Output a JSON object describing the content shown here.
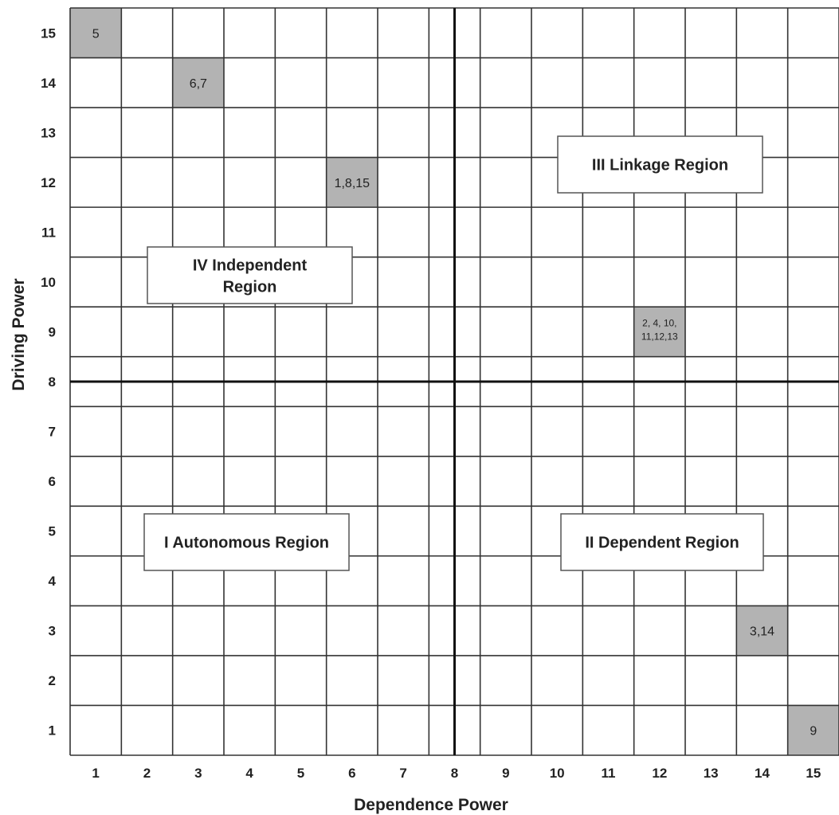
{
  "chart_data": {
    "type": "scatter",
    "xlabel": "Dependence Power",
    "ylabel": "Driving Power",
    "xlim": [
      1,
      15
    ],
    "ylim": [
      1,
      15
    ],
    "x_ticks": [
      "1",
      "2",
      "3",
      "4",
      "5",
      "6",
      "7",
      "8",
      "9",
      "10",
      "11",
      "12",
      "13",
      "14",
      "15"
    ],
    "y_ticks": [
      "1",
      "2",
      "3",
      "4",
      "5",
      "6",
      "7",
      "8",
      "9",
      "10",
      "11",
      "12",
      "13",
      "14",
      "15"
    ],
    "grid": true,
    "divider": {
      "x": 8,
      "y": 8
    },
    "points": [
      {
        "x": 1,
        "y": 15,
        "label": "5"
      },
      {
        "x": 3,
        "y": 14,
        "label": "6,7"
      },
      {
        "x": 6,
        "y": 12,
        "label": "1,8,15"
      },
      {
        "x": 12,
        "y": 9,
        "label": "2, 4, 10, 11,12,13"
      },
      {
        "x": 14,
        "y": 3,
        "label": "3,14"
      },
      {
        "x": 15,
        "y": 1,
        "label": "9"
      }
    ],
    "regions": [
      {
        "name": "IV Independent Region",
        "quadrant": "top-left"
      },
      {
        "name": "III Linkage Region",
        "quadrant": "top-right"
      },
      {
        "name": "I Autonomous Region",
        "quadrant": "bottom-left"
      },
      {
        "name": "II Dependent Region",
        "quadrant": "bottom-right"
      }
    ]
  },
  "colors": {
    "cell_fill": "#b3b3b3",
    "grid_line": "#333333",
    "divider_line": "#111111",
    "region_box_fill": "#ffffff"
  }
}
